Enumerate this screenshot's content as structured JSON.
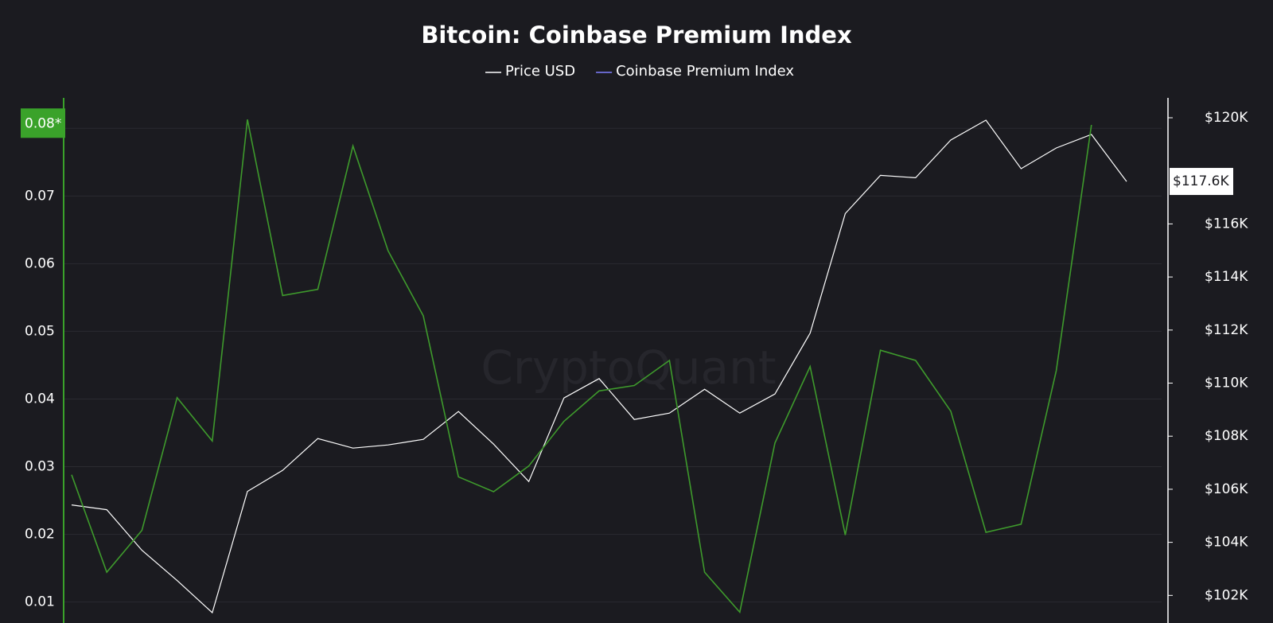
{
  "chart_data": {
    "type": "line",
    "title": "Bitcoin: Coinbase Premium Index",
    "watermark": "CryptoQuant",
    "categories": [
      null,
      null,
      null,
      null,
      null,
      null,
      null,
      null,
      null,
      null,
      null,
      null,
      null,
      null,
      null,
      null,
      null,
      null,
      null,
      null,
      null,
      null,
      null,
      null,
      null,
      null,
      null,
      null,
      null,
      null,
      null
    ],
    "series": [
      {
        "name": "Price USD",
        "color": "#ffffff",
        "legend_color": "#ffffff",
        "axis": "y2",
        "values": [
          105410,
          105230,
          103700,
          102560,
          101350,
          105920,
          106710,
          107910,
          107550,
          107670,
          107880,
          108930,
          107700,
          106290,
          109440,
          110170,
          108630,
          108870,
          109770,
          108870,
          109590,
          111880,
          116390,
          117830,
          117740,
          119160,
          119910,
          118080,
          118860,
          119370,
          117600
        ],
        "value_labels": [
          null,
          null,
          null,
          null,
          null,
          null,
          null,
          null,
          null,
          null,
          null,
          null,
          null,
          null,
          null,
          null,
          null,
          null,
          null,
          null,
          null,
          null,
          null,
          null,
          null,
          null,
          null,
          null,
          null,
          null,
          "$117.6K"
        ]
      },
      {
        "name": "Coinbase Premium Index",
        "color": "#3e9a2c",
        "legend_color": "#7f7fff",
        "values": [
          0.0288,
          0.0144,
          0.0206,
          0.0402,
          0.0338,
          0.0813,
          0.0553,
          0.0562,
          0.0774,
          0.0619,
          0.0523,
          0.0285,
          0.0263,
          0.0301,
          0.0367,
          0.0412,
          0.042,
          0.0457,
          0.0144,
          0.0085,
          0.0335,
          0.0448,
          0.0199,
          0.0472,
          0.0457,
          0.0382,
          0.0203,
          0.0215,
          0.0442,
          0.0805,
          null
        ]
      }
    ],
    "ylim": [
      0.0069,
      0.0845
    ],
    "yticks": [
      0.01,
      0.02,
      0.03,
      0.04,
      0.05,
      0.06,
      0.07,
      {
        "value": 0.08,
        "label": "0.08*"
      }
    ],
    "y2lim": [
      100960,
      120750
    ],
    "y2ticks": [
      {
        "value": 102000,
        "label": "$102K"
      },
      {
        "value": 104000,
        "label": "$104K"
      },
      {
        "value": 106000,
        "label": "$106K"
      },
      {
        "value": 108000,
        "label": "$108K"
      },
      {
        "value": 110000,
        "label": "$110K"
      },
      {
        "value": 112000,
        "label": "$112K"
      },
      {
        "value": 114000,
        "label": "$114K"
      },
      {
        "value": 116000,
        "label": "$116K"
      },
      {
        "value": 120000,
        "label": "$120K"
      }
    ],
    "grid": true
  }
}
